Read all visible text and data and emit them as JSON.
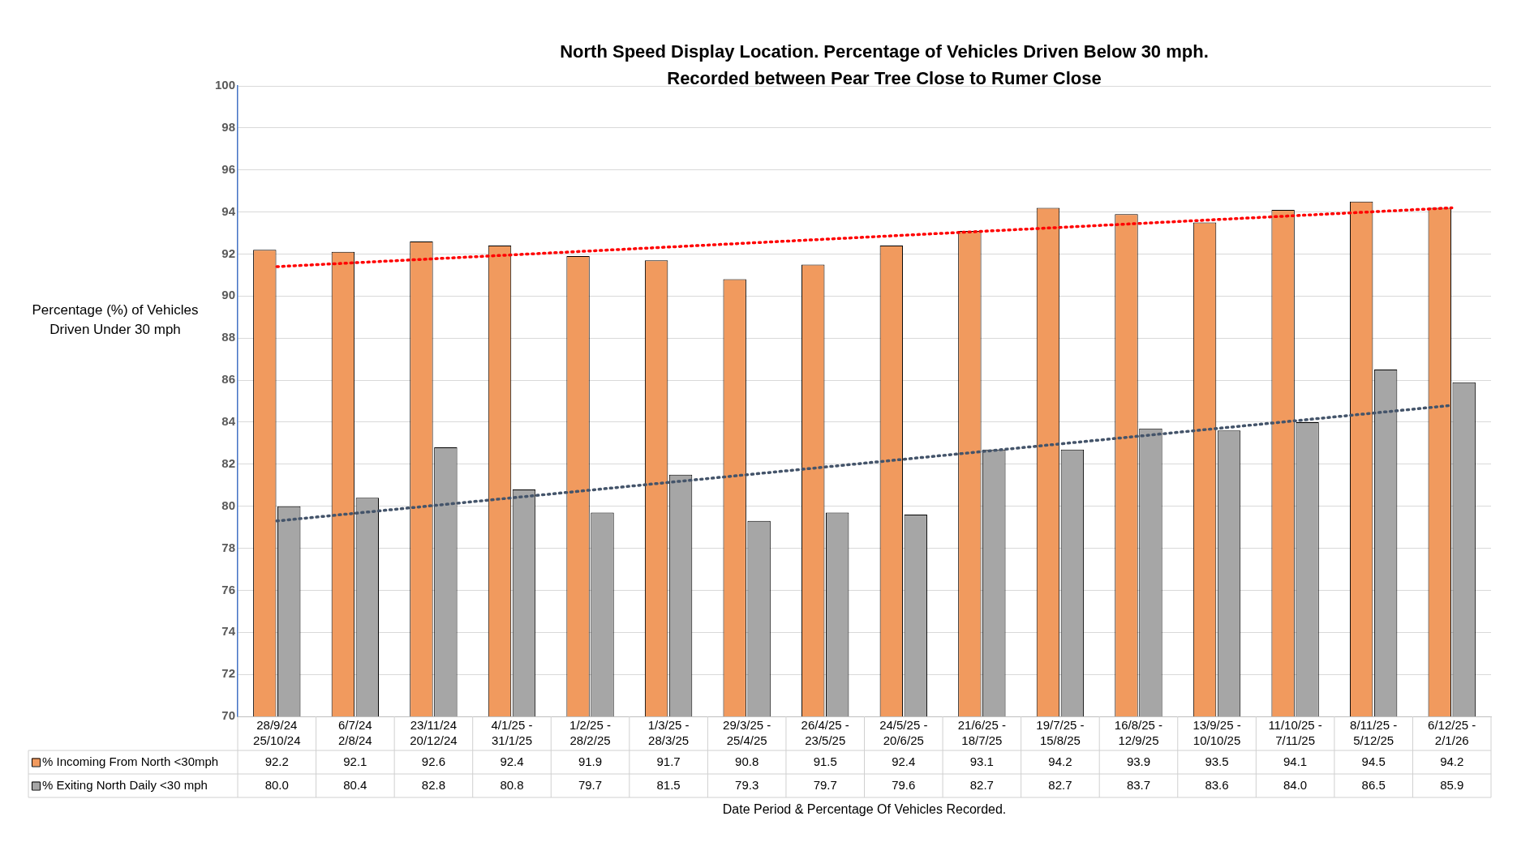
{
  "chart_data": {
    "type": "bar",
    "title": "North Speed Display Location. Percentage of Vehicles Driven Below 30 mph.",
    "subtitle": "Recorded between Pear Tree Close to Rumer Close",
    "xlabel": "Date Period & Percentage Of Vehicles Recorded.",
    "ylabel": "Percentage (%) of Vehicles Driven Under 30 mph",
    "categories": [
      "28/9/24 25/10/24",
      "6/7/24 2/8/24",
      "23/11/24 20/12/24",
      "4/1/25 - 31/1/25",
      "1/2/25 - 28/2/25",
      "1/3/25 - 28/3/25",
      "29/3/25 - 25/4/25",
      "26/4/25 - 23/5/25",
      "24/5/25 - 20/6/25",
      "21/6/25 - 18/7/25",
      "19/7/25 - 15/8/25",
      "16/8/25 - 12/9/25",
      "13/9/25 - 10/10/25",
      "11/10/25 - 7/11/25",
      "8/11/25 - 5/12/25",
      "6/12/25 - 2/1/26"
    ],
    "series": [
      {
        "name": "% Incoming From North <30mph",
        "color": "#f19a5e",
        "values": [
          92.2,
          92.1,
          92.6,
          92.4,
          91.9,
          91.7,
          90.8,
          91.5,
          92.4,
          93.1,
          94.2,
          93.9,
          93.5,
          94.1,
          94.5,
          94.2
        ],
        "value_labels": [
          "92.2",
          "92.1",
          "92.6",
          "92.4",
          "91.9",
          "91.7",
          "90.8",
          "91.5",
          "92.4",
          "93.1",
          "94.2",
          "93.9",
          "93.5",
          "94.1",
          "94.5",
          "94.2"
        ]
      },
      {
        "name": "% Exiting North Daily <30 mph",
        "color": "#a6a6a6",
        "values": [
          80.0,
          80.4,
          82.8,
          80.8,
          79.7,
          81.5,
          79.3,
          79.7,
          79.6,
          82.7,
          82.7,
          83.7,
          83.6,
          84.0,
          86.5,
          85.9
        ],
        "value_labels": [
          "80.0",
          "80.4",
          "82.8",
          "80.8",
          "79.7",
          "81.5",
          "79.3",
          "79.7",
          "79.6",
          "82.7",
          "82.7",
          "83.7",
          "83.6",
          "84.0",
          "86.5",
          "85.9"
        ]
      },
      {
        "type": "line",
        "color": "#ff0000",
        "line_style": "dotted",
        "values": [
          91.4,
          null,
          null,
          null,
          null,
          null,
          null,
          null,
          null,
          null,
          null,
          null,
          null,
          null,
          null,
          94.2
        ]
      },
      {
        "type": "line",
        "color": "#44546a",
        "line_style": "dotted",
        "values": [
          79.3,
          null,
          null,
          null,
          null,
          null,
          null,
          null,
          null,
          null,
          null,
          null,
          null,
          null,
          null,
          84.8
        ]
      }
    ],
    "ylim": [
      70,
      100
    ],
    "yticks": [
      70,
      72,
      74,
      76,
      78,
      80,
      82,
      84,
      86,
      88,
      90,
      92,
      94,
      96,
      98,
      100
    ],
    "grid": "y",
    "legend": "bottom left",
    "marker": "none"
  }
}
